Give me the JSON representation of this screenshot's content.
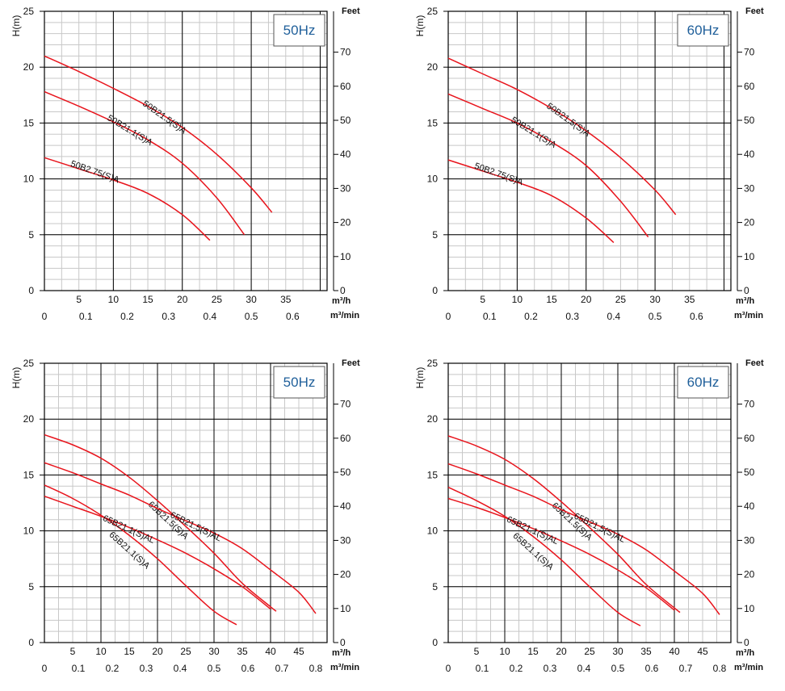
{
  "chart_data": [
    {
      "type": "line",
      "title": "",
      "badge": "50Hz",
      "ylabel": "H(m)",
      "ylabel_right": "Feet",
      "xlabel_top": "m³/h",
      "xlabel_bottom": "m³/min",
      "ylim": [
        0,
        25
      ],
      "yticks": [
        0,
        5,
        10,
        15,
        20,
        25
      ],
      "ylim_right": [
        0,
        82
      ],
      "yticks_right": [
        0,
        10,
        20,
        30,
        40,
        50,
        60,
        70
      ],
      "xlim": [
        0,
        41
      ],
      "xticks_top": [
        5,
        10,
        15,
        20,
        25,
        30,
        35
      ],
      "xticks_bottom": [
        "0",
        "0.1",
        "0.2",
        "0.3",
        "0.4",
        "0.5",
        "0.6"
      ],
      "grid": true,
      "series": [
        {
          "name": "50B21.5(S)A",
          "x": [
            0,
            5,
            10,
            15,
            20,
            25,
            30,
            33
          ],
          "y": [
            21,
            19.6,
            18.1,
            16.5,
            14.6,
            12.2,
            9.2,
            7
          ]
        },
        {
          "name": "50B21.1(S)A",
          "x": [
            0,
            5,
            10,
            15,
            20,
            25,
            29
          ],
          "y": [
            17.8,
            16.5,
            15.1,
            13.5,
            11.4,
            8.3,
            5
          ]
        },
        {
          "name": "50B2.75(S)A",
          "x": [
            0,
            5,
            10,
            15,
            20,
            24
          ],
          "y": [
            11.9,
            10.9,
            9.9,
            8.7,
            6.8,
            4.5
          ]
        }
      ]
    },
    {
      "type": "line",
      "title": "",
      "badge": "60Hz",
      "ylabel": "H(m)",
      "ylabel_right": "Feet",
      "xlabel_top": "m³/h",
      "xlabel_bottom": "m³/min",
      "ylim": [
        0,
        25
      ],
      "yticks": [
        0,
        5,
        10,
        15,
        20,
        25
      ],
      "ylim_right": [
        0,
        82
      ],
      "yticks_right": [
        0,
        10,
        20,
        30,
        40,
        50,
        60,
        70
      ],
      "xlim": [
        0,
        41
      ],
      "xticks_top": [
        5,
        10,
        15,
        20,
        25,
        30,
        35
      ],
      "xticks_bottom": [
        "0",
        "0.1",
        "0.2",
        "0.3",
        "0.4",
        "0.5",
        "0.6"
      ],
      "grid": true,
      "series": [
        {
          "name": "50B21.5(S)A",
          "x": [
            0,
            5,
            10,
            15,
            20,
            25,
            30,
            33
          ],
          "y": [
            20.8,
            19.4,
            18,
            16.3,
            14.3,
            11.9,
            9,
            6.8
          ]
        },
        {
          "name": "50B21.1(S)A",
          "x": [
            0,
            5,
            10,
            15,
            20,
            25,
            29
          ],
          "y": [
            17.6,
            16.3,
            15,
            13.3,
            11.2,
            8,
            4.8
          ]
        },
        {
          "name": "50B2.75(S)A",
          "x": [
            0,
            5,
            10,
            15,
            20,
            24
          ],
          "y": [
            11.7,
            10.7,
            9.7,
            8.5,
            6.5,
            4.3
          ]
        }
      ]
    },
    {
      "type": "line",
      "title": "",
      "badge": "50Hz",
      "ylabel": "H(m)",
      "ylabel_right": "Feet",
      "xlabel_top": "m³/h",
      "xlabel_bottom": "m³/min",
      "ylim": [
        0,
        25
      ],
      "yticks": [
        0,
        5,
        10,
        15,
        20,
        25
      ],
      "ylim_right": [
        0,
        82
      ],
      "yticks_right": [
        0,
        10,
        20,
        30,
        40,
        50,
        60,
        70
      ],
      "xlim": [
        0,
        50
      ],
      "xticks_top": [
        5,
        10,
        15,
        20,
        25,
        30,
        35,
        40,
        45
      ],
      "xticks_bottom": [
        "0",
        "0.1",
        "0.2",
        "0.3",
        "0.4",
        "0.5",
        "0.6",
        "0.7",
        "0.8"
      ],
      "grid": true,
      "series": [
        {
          "name": "65B21.5(S)A",
          "x": [
            0,
            5,
            10,
            15,
            20,
            25,
            30,
            35,
            40,
            41
          ],
          "y": [
            18.6,
            17.7,
            16.5,
            14.8,
            12.7,
            10.4,
            8,
            5.3,
            3.2,
            2.8
          ]
        },
        {
          "name": "65B21.5(S)AL",
          "x": [
            0,
            5,
            10,
            15,
            20,
            25,
            30,
            35,
            40,
            45,
            48
          ],
          "y": [
            16.1,
            15.2,
            14.2,
            13.2,
            12,
            10.9,
            9.8,
            8.4,
            6.5,
            4.5,
            2.6
          ]
        },
        {
          "name": "65B21.1(S)A",
          "x": [
            0,
            5,
            10,
            15,
            20,
            25,
            30,
            34
          ],
          "y": [
            14.1,
            12.9,
            11.4,
            9.6,
            7.5,
            5.1,
            2.8,
            1.6
          ]
        },
        {
          "name": "65B21.1(S)AL",
          "x": [
            0,
            5,
            10,
            15,
            20,
            25,
            30,
            35,
            40
          ],
          "y": [
            13.1,
            12.2,
            11.3,
            10.3,
            9.2,
            8,
            6.6,
            5,
            3
          ]
        }
      ]
    },
    {
      "type": "line",
      "title": "",
      "badge": "60Hz",
      "ylabel": "H(m)",
      "ylabel_right": "Feet",
      "xlabel_top": "m³/h",
      "xlabel_bottom": "m³/min",
      "ylim": [
        0,
        25
      ],
      "yticks": [
        0,
        5,
        10,
        15,
        20,
        25
      ],
      "ylim_right": [
        0,
        82
      ],
      "yticks_right": [
        0,
        10,
        20,
        30,
        40,
        50,
        60,
        70
      ],
      "xlim": [
        0,
        50
      ],
      "xticks_top": [
        5,
        10,
        15,
        20,
        25,
        30,
        35,
        40,
        45
      ],
      "xticks_bottom": [
        "0",
        "0.1",
        "0.2",
        "0.3",
        "0.4",
        "0.5",
        "0.6",
        "0.7",
        "0.8"
      ],
      "grid": true,
      "series": [
        {
          "name": "65B21.5(S)A",
          "x": [
            0,
            5,
            10,
            15,
            20,
            25,
            30,
            35,
            40,
            41
          ],
          "y": [
            18.5,
            17.6,
            16.4,
            14.7,
            12.6,
            10.3,
            7.9,
            5.2,
            3.1,
            2.7
          ]
        },
        {
          "name": "65B21.5(S)AL",
          "x": [
            0,
            5,
            10,
            15,
            20,
            25,
            30,
            35,
            40,
            45,
            48
          ],
          "y": [
            16,
            15.1,
            14.1,
            13.1,
            11.9,
            10.8,
            9.7,
            8.3,
            6.4,
            4.4,
            2.5
          ]
        },
        {
          "name": "65B21.1(S)A",
          "x": [
            0,
            5,
            10,
            15,
            20,
            25,
            30,
            34
          ],
          "y": [
            13.9,
            12.7,
            11.3,
            9.5,
            7.4,
            5,
            2.7,
            1.5
          ]
        },
        {
          "name": "65B21.1(S)AL",
          "x": [
            0,
            5,
            10,
            15,
            20,
            25,
            30,
            35,
            40
          ],
          "y": [
            12.9,
            12.1,
            11.2,
            10.2,
            9.1,
            7.9,
            6.5,
            4.9,
            2.9
          ]
        }
      ]
    }
  ],
  "colors": {
    "curve": "#e8141c",
    "grid_minor": "#c8c8c8",
    "grid_major": "#000000",
    "badge_text": "#1f5f9a"
  }
}
